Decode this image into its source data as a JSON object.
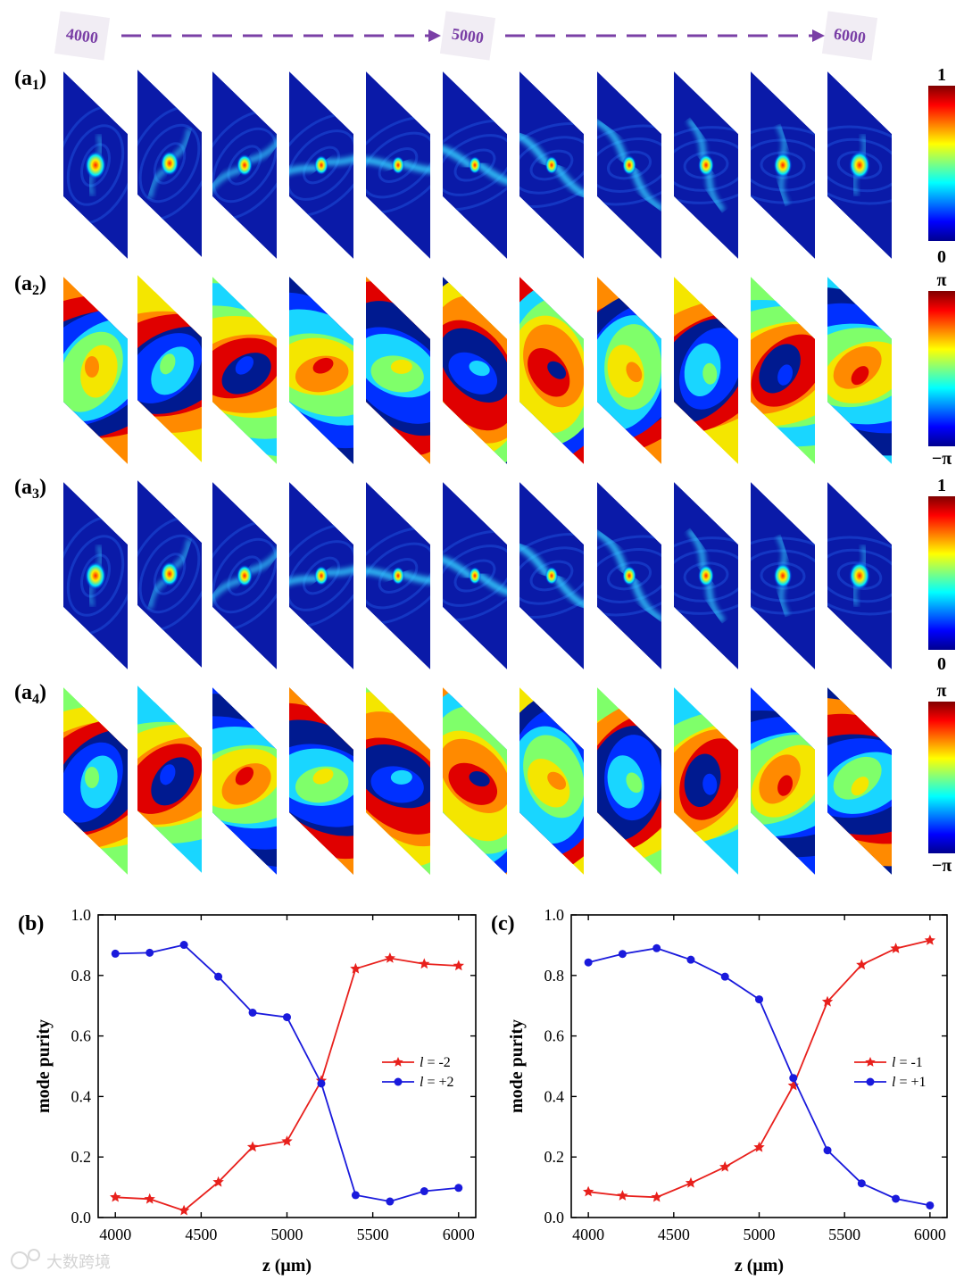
{
  "timeline": {
    "start": "4000",
    "mid": "5000",
    "end": "6000",
    "arrow_color": "#7a3fa6"
  },
  "panels": {
    "rows": [
      {
        "label": "a",
        "sub": "1",
        "kind": "intensity"
      },
      {
        "label": "a",
        "sub": "2",
        "kind": "phase"
      },
      {
        "label": "a",
        "sub": "3",
        "kind": "intensity"
      },
      {
        "label": "a",
        "sub": "4",
        "kind": "phase"
      }
    ],
    "colorbars": [
      {
        "top": "1",
        "bottom": "0"
      },
      {
        "top": "π",
        "bottom": "−π"
      },
      {
        "top": "1",
        "bottom": "0"
      },
      {
        "top": "π",
        "bottom": "−π"
      }
    ]
  },
  "colors": {
    "red": "#e8201c",
    "blue": "#1a1adc",
    "jet_low": "#00008f",
    "jet_high": "#800000"
  },
  "watermark": "大数跨境",
  "chart_data": [
    {
      "panel": "(b)",
      "type": "line",
      "xlabel": "z (μm)",
      "ylabel": "mode purity",
      "xlim": [
        3900,
        6100
      ],
      "ylim": [
        0.0,
        1.0
      ],
      "xticks": [
        "4000",
        "4500",
        "5000",
        "5500",
        "6000"
      ],
      "yticks": [
        "0.0",
        "0.2",
        "0.4",
        "0.6",
        "0.8",
        "1.0"
      ],
      "x": [
        4000,
        4200,
        4400,
        4600,
        4800,
        5000,
        5200,
        5400,
        5600,
        5800,
        6000
      ],
      "series": [
        {
          "name": "l = -2",
          "italic": "l",
          "rest": " = -2",
          "marker": "star",
          "color": "#e8201c",
          "values": [
            0.067,
            0.061,
            0.023,
            0.117,
            0.233,
            0.252,
            0.452,
            0.822,
            0.857,
            0.838,
            0.832
          ]
        },
        {
          "name": "l = +2",
          "italic": "l",
          "rest": " = +2",
          "marker": "circle",
          "color": "#1a1adc",
          "values": [
            0.872,
            0.875,
            0.901,
            0.796,
            0.677,
            0.662,
            0.443,
            0.074,
            0.053,
            0.087,
            0.098
          ]
        }
      ]
    },
    {
      "panel": "(c)",
      "type": "line",
      "xlabel": "z (μm)",
      "ylabel": "mode purity",
      "xlim": [
        3900,
        6100
      ],
      "ylim": [
        0.0,
        1.0
      ],
      "xticks": [
        "4000",
        "4500",
        "5000",
        "5500",
        "6000"
      ],
      "yticks": [
        "0.0",
        "0.2",
        "0.4",
        "0.6",
        "0.8",
        "1.0"
      ],
      "x": [
        4000,
        4200,
        4400,
        4600,
        4800,
        5000,
        5200,
        5400,
        5600,
        5800,
        6000
      ],
      "series": [
        {
          "name": "l = -1",
          "italic": "l",
          "rest": " = -1",
          "marker": "star",
          "color": "#e8201c",
          "values": [
            0.085,
            0.072,
            0.067,
            0.114,
            0.167,
            0.232,
            0.436,
            0.713,
            0.835,
            0.889,
            0.916
          ]
        },
        {
          "name": "l = +1",
          "italic": "l",
          "rest": " = +1",
          "marker": "circle",
          "color": "#1a1adc",
          "values": [
            0.843,
            0.871,
            0.89,
            0.852,
            0.796,
            0.721,
            0.461,
            0.222,
            0.113,
            0.062,
            0.04
          ]
        }
      ]
    }
  ]
}
